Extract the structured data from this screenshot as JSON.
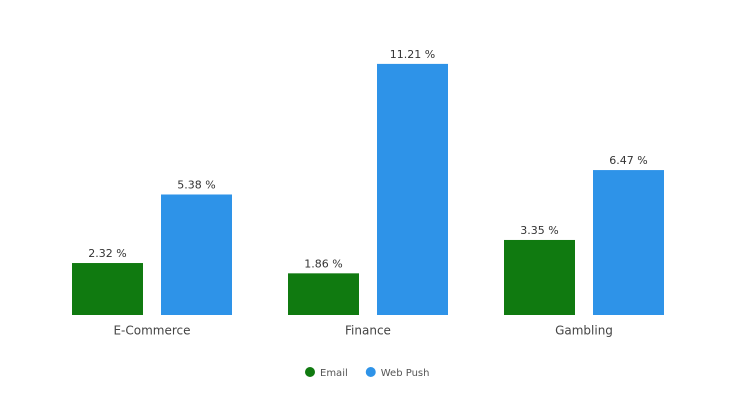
{
  "chart_data": {
    "type": "bar",
    "categories": [
      "E-Commerce",
      "Finance",
      "Gambling"
    ],
    "series": [
      {
        "name": "Email",
        "color": "#107a10",
        "values": [
          2.32,
          1.86,
          3.35
        ],
        "value_labels": [
          "2.32 %",
          "1.86 %",
          "3.35 %"
        ]
      },
      {
        "name": "Web Push",
        "color": "#2e93e8",
        "values": [
          5.38,
          11.21,
          6.47
        ],
        "value_labels": [
          "5.38 %",
          "11.21 %",
          "6.47 %"
        ]
      }
    ],
    "legend": "bottom"
  }
}
